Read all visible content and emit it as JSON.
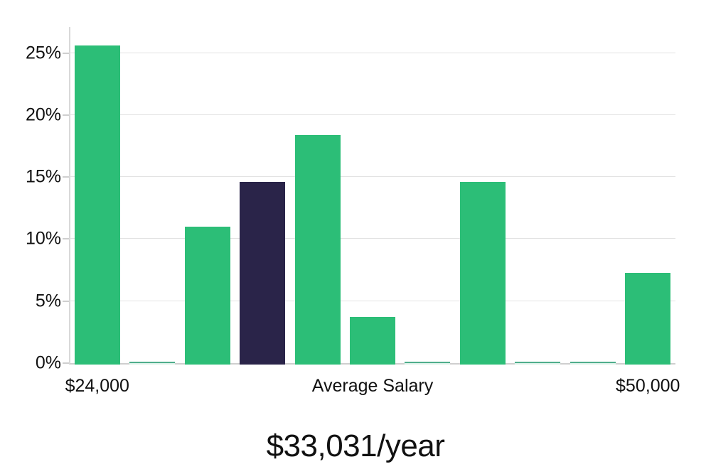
{
  "chart_data": {
    "type": "bar",
    "title": "$33,031/year",
    "values": [
      25.6,
      0.1,
      11.0,
      14.6,
      18.4,
      3.7,
      0.1,
      14.6,
      0.1,
      0.1,
      7.3
    ],
    "highlight_index": 3,
    "bar_color": "#2cbe77",
    "highlight_color": "#2a2449",
    "ylim": [
      0,
      27.1
    ],
    "y_ticks": [
      {
        "value": 0,
        "label": "0%"
      },
      {
        "value": 5,
        "label": "5%"
      },
      {
        "value": 10,
        "label": "10%"
      },
      {
        "value": 15,
        "label": "15%"
      },
      {
        "value": 20,
        "label": "20%"
      },
      {
        "value": 25,
        "label": "25%"
      }
    ],
    "x_ticks": [
      {
        "label": "$24,000",
        "position_pct": 4.55
      },
      {
        "label": "Average Salary",
        "position_pct": 50.0
      },
      {
        "label": "$50,000",
        "position_pct": 95.45
      }
    ],
    "grid": "horizontal",
    "legend": "none"
  }
}
